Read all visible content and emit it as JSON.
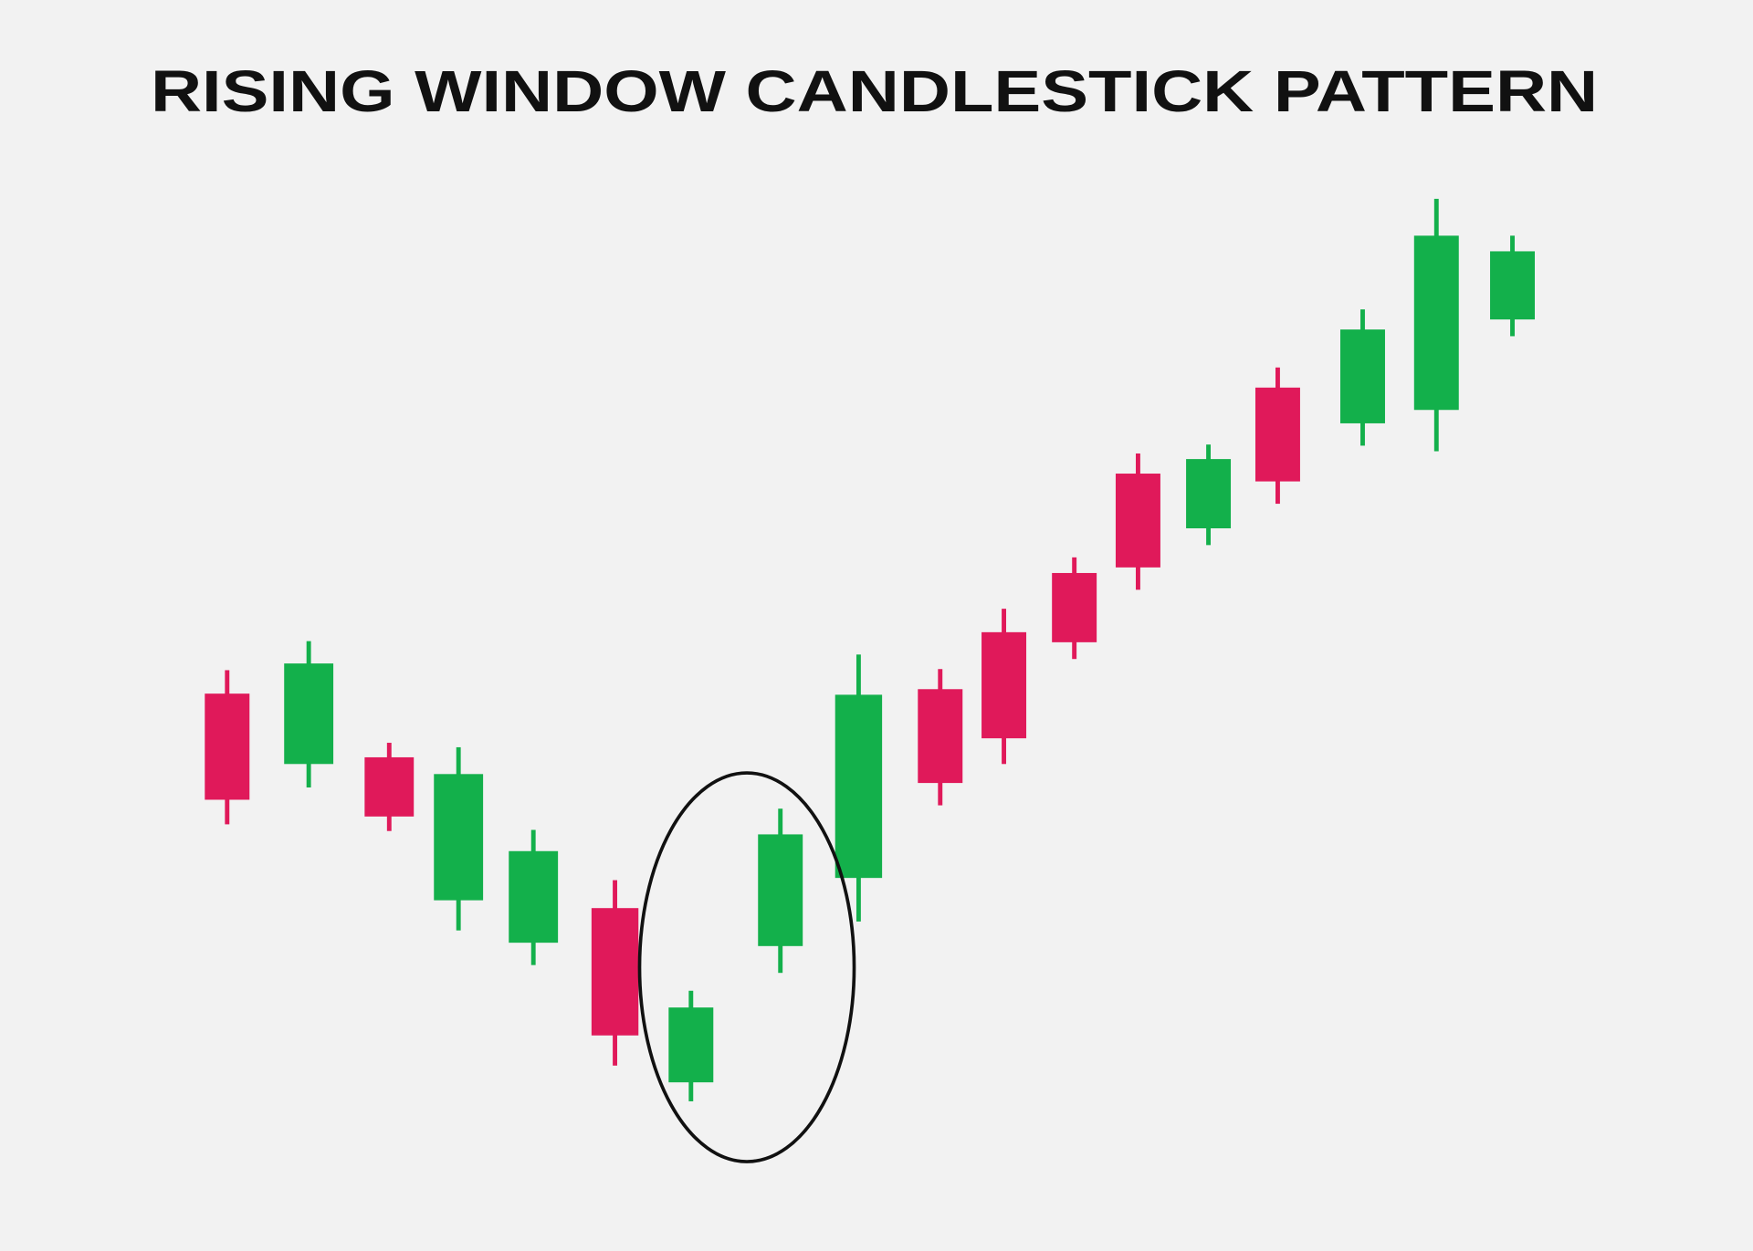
{
  "chart_data": {
    "type": "candlestick",
    "title": "RISING WINDOW CANDLESTICK PATTERN",
    "open": [
      49.9,
      43.6,
      44.2,
      31.4,
      27.6,
      30.7,
      15.1,
      27.3,
      33.4,
      50.3,
      55.4,
      60.7,
      69.6,
      64.7,
      77.3,
      74.1,
      75.3,
      83.4
    ],
    "high": [
      52.0,
      54.6,
      45.5,
      45.1,
      37.7,
      33.2,
      23.3,
      39.6,
      53.4,
      52.1,
      57.5,
      62.1,
      71.4,
      72.2,
      79.1,
      84.3,
      94.2,
      90.9
    ],
    "low": [
      38.2,
      41.5,
      37.6,
      28.7,
      25.6,
      16.6,
      13.4,
      24.9,
      29.5,
      39.9,
      43.6,
      53.0,
      59.2,
      63.2,
      66.9,
      72.1,
      71.6,
      81.9
    ],
    "close": [
      40.4,
      52.6,
      38.9,
      42.7,
      35.8,
      19.3,
      21.8,
      37.3,
      49.8,
      41.9,
      45.9,
      54.5,
      61.2,
      70.9,
      68.9,
      82.5,
      90.9,
      89.5
    ],
    "up_color": "#13b04b",
    "down_color": "#e0195a",
    "ylim": [
      0,
      112
    ]
  }
}
